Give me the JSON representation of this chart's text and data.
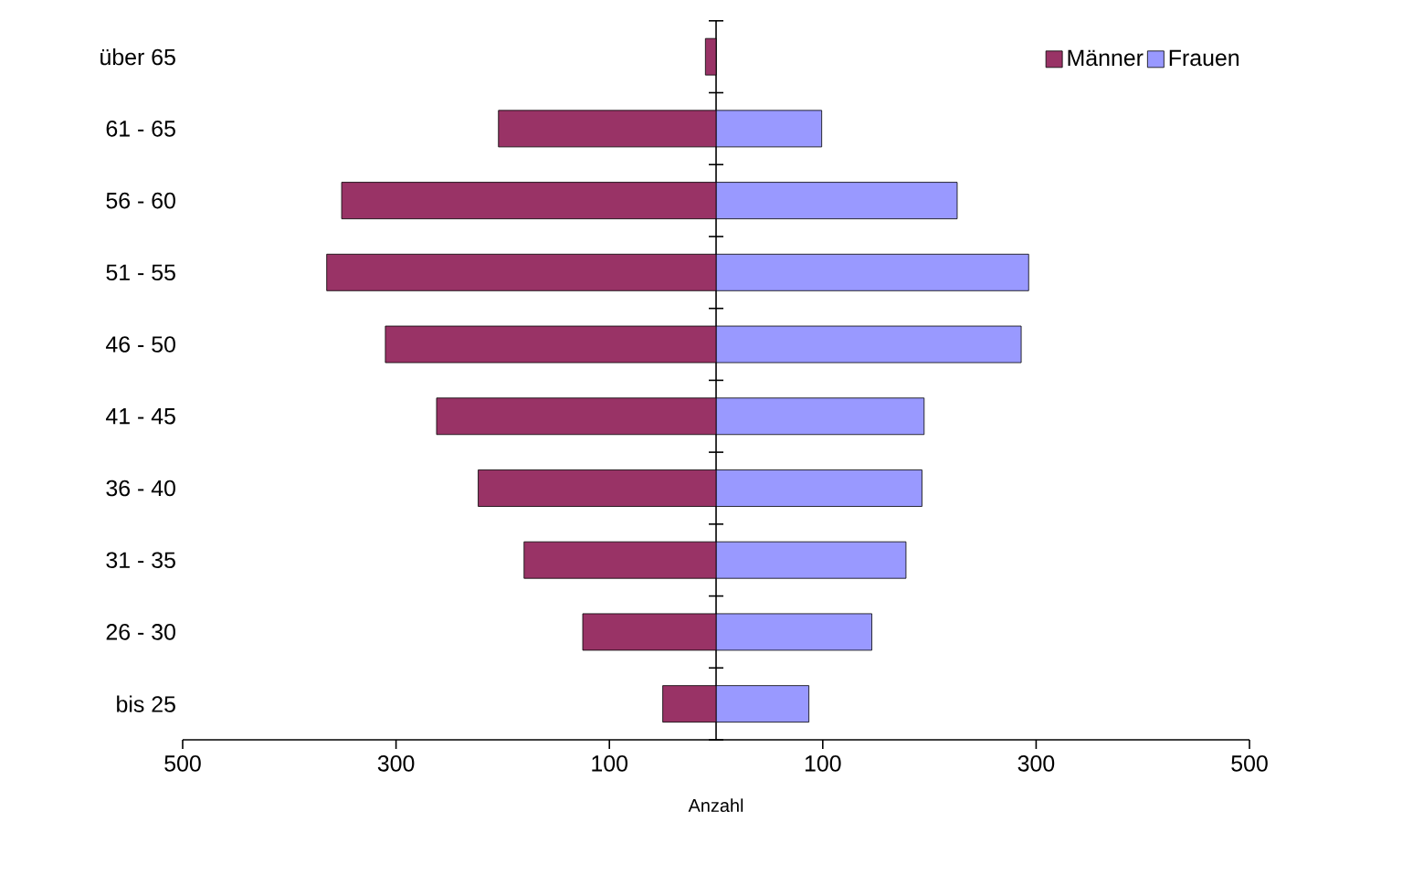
{
  "chart_data": {
    "type": "bar",
    "orientation": "horizontal",
    "xlabel": "Anzahl",
    "categories": [
      "über 65",
      "61 - 65",
      "56 - 60",
      "51 - 55",
      "46 - 50",
      "41 - 45",
      "36 - 40",
      "31 - 35",
      "26 - 30",
      "bis 25"
    ],
    "series": [
      {
        "name": "Männer",
        "color": "#993366",
        "values": [
          -10,
          -204,
          -351,
          -365,
          -310,
          -262,
          -223,
          -180,
          -125,
          -50
        ]
      },
      {
        "name": "Frauen",
        "color": "#9999ff",
        "values": [
          null,
          99,
          226,
          293,
          286,
          195,
          193,
          178,
          146,
          87
        ]
      }
    ],
    "xlim": [
      -500,
      500
    ],
    "xticks": [
      {
        "value": -500,
        "label": "500"
      },
      {
        "value": -300,
        "label": "300"
      },
      {
        "value": -100,
        "label": "100"
      },
      {
        "value": 100,
        "label": "100"
      },
      {
        "value": 300,
        "label": "300"
      },
      {
        "value": 500,
        "label": "500"
      }
    ],
    "legend": "top right",
    "grid": false,
    "stacked": true
  }
}
